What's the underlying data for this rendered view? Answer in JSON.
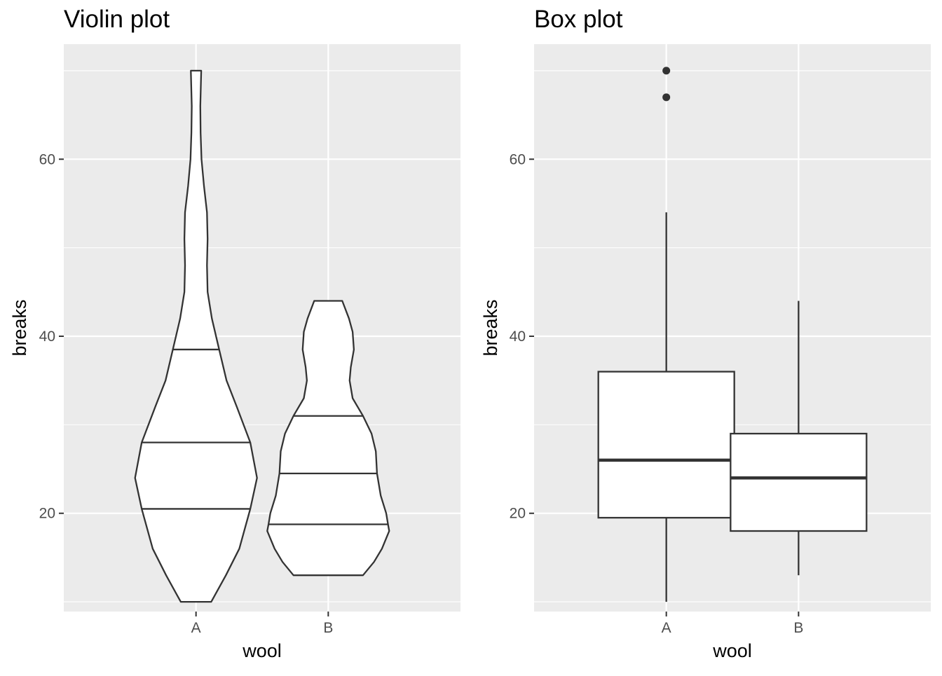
{
  "chart_data": [
    {
      "type": "violin",
      "title": "Violin plot",
      "xlabel": "wool",
      "ylabel": "breaks",
      "categories": [
        "A",
        "B"
      ],
      "ylim": [
        8.9,
        73
      ],
      "yticks": [
        20,
        40,
        60
      ],
      "y_tick_labels": [
        "20",
        "40",
        "60"
      ],
      "grid": true,
      "fill_color": "#ffffff",
      "line_color": "#333333",
      "panel_color": "#ebebeb",
      "violins": [
        {
          "category": "A",
          "range": [
            10,
            70
          ],
          "quantiles": [
            20.5,
            28,
            38.5
          ],
          "density_profile": [
            [
              10,
              0.25
            ],
            [
              13,
              0.49
            ],
            [
              16,
              0.71
            ],
            [
              20.5,
              0.89
            ],
            [
              24,
              1.0
            ],
            [
              28,
              0.89
            ],
            [
              32,
              0.67
            ],
            [
              35,
              0.5
            ],
            [
              38.5,
              0.38
            ],
            [
              42,
              0.26
            ],
            [
              45,
              0.19
            ],
            [
              48,
              0.18
            ],
            [
              51,
              0.19
            ],
            [
              54,
              0.18
            ],
            [
              57,
              0.13
            ],
            [
              60,
              0.09
            ],
            [
              63,
              0.075
            ],
            [
              66,
              0.07
            ],
            [
              70,
              0.085
            ]
          ]
        },
        {
          "category": "B",
          "range": [
            13,
            44
          ],
          "quantiles": [
            18.75,
            24.5,
            31
          ],
          "density_profile": [
            [
              13,
              0.57
            ],
            [
              14.5,
              0.75
            ],
            [
              16,
              0.88
            ],
            [
              18,
              1.0
            ],
            [
              18.75,
              0.98
            ],
            [
              20,
              0.95
            ],
            [
              22,
              0.86
            ],
            [
              24.5,
              0.8
            ],
            [
              27,
              0.78
            ],
            [
              29,
              0.71
            ],
            [
              31,
              0.57
            ],
            [
              33,
              0.4
            ],
            [
              35,
              0.35
            ],
            [
              36.5,
              0.37
            ],
            [
              38.5,
              0.42
            ],
            [
              40.5,
              0.4
            ],
            [
              42,
              0.34
            ],
            [
              44,
              0.23
            ]
          ]
        }
      ]
    },
    {
      "type": "box",
      "title": "Box plot",
      "xlabel": "wool",
      "ylabel": "breaks",
      "categories": [
        "A",
        "B"
      ],
      "ylim": [
        8.9,
        73
      ],
      "yticks": [
        20,
        40,
        60
      ],
      "y_tick_labels": [
        "20",
        "40",
        "60"
      ],
      "grid": true,
      "fill_color": "#ffffff",
      "line_color": "#333333",
      "panel_color": "#ebebeb",
      "boxes": [
        {
          "category": "A",
          "whisker_low": 10,
          "q1": 19.5,
          "median": 26,
          "q3": 36,
          "whisker_high": 54,
          "outliers": [
            67,
            70
          ]
        },
        {
          "category": "B",
          "whisker_low": 13,
          "q1": 18,
          "median": 24,
          "q3": 29,
          "whisker_high": 44,
          "outliers": []
        }
      ]
    }
  ]
}
